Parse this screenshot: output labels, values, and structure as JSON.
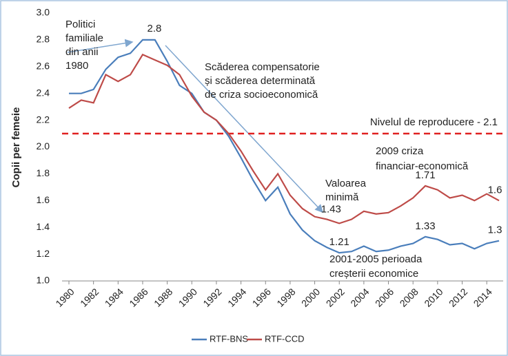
{
  "chart_data": {
    "type": "line",
    "y_label": "Copii per femeie",
    "x": [
      1980,
      1981,
      1982,
      1983,
      1984,
      1985,
      1986,
      1987,
      1988,
      1989,
      1990,
      1991,
      1992,
      1993,
      1994,
      1995,
      1996,
      1997,
      1998,
      1999,
      2000,
      2001,
      2002,
      2003,
      2004,
      2005,
      2006,
      2007,
      2008,
      2009,
      2010,
      2011,
      2012,
      2013,
      2014,
      2015
    ],
    "xlim": [
      1980,
      2015
    ],
    "xticks": [
      1980,
      1982,
      1984,
      1986,
      1988,
      1990,
      1992,
      1994,
      1996,
      1998,
      2000,
      2002,
      2004,
      2006,
      2008,
      2010,
      2012,
      2014
    ],
    "ylim": [
      1.0,
      3.0
    ],
    "yticks": [
      {
        "value": 1.0,
        "label": "1.0"
      },
      {
        "value": 1.2,
        "label": "1.2"
      },
      {
        "value": 1.4,
        "label": "1.4"
      },
      {
        "value": 1.6,
        "label": "1.6"
      },
      {
        "value": 1.8,
        "label": "1.8"
      },
      {
        "value": 2.0,
        "label": "2.0"
      },
      {
        "value": 2.2,
        "label": "2.2"
      },
      {
        "value": 2.4,
        "label": "2.4"
      },
      {
        "value": 2.6,
        "label": "2.6"
      },
      {
        "value": 2.8,
        "label": "2.8"
      },
      {
        "value": 3.0,
        "label": "3.0"
      }
    ],
    "grid": false,
    "legend": "bottom",
    "series": [
      {
        "name": "RTF-BNS",
        "color": "#4a7ebb",
        "values": [
          2.4,
          2.4,
          2.43,
          2.58,
          2.67,
          2.7,
          2.8,
          2.8,
          2.64,
          2.46,
          2.4,
          2.26,
          2.2,
          2.08,
          1.92,
          1.75,
          1.6,
          1.7,
          1.5,
          1.38,
          1.3,
          1.25,
          1.21,
          1.22,
          1.26,
          1.22,
          1.23,
          1.26,
          1.28,
          1.33,
          1.31,
          1.27,
          1.28,
          1.24,
          1.28,
          1.3
        ],
        "value_labels": [
          null,
          null,
          null,
          null,
          null,
          null,
          "2.8",
          null,
          null,
          null,
          null,
          null,
          null,
          null,
          null,
          null,
          null,
          null,
          null,
          null,
          null,
          null,
          "1.21",
          null,
          null,
          null,
          null,
          null,
          null,
          "1.33",
          null,
          null,
          null,
          null,
          null,
          "1.3"
        ]
      },
      {
        "name": "RTF-CCD",
        "color": "#be4b48",
        "values": [
          2.29,
          2.35,
          2.33,
          2.54,
          2.49,
          2.54,
          2.69,
          2.65,
          2.61,
          2.54,
          2.38,
          2.26,
          2.2,
          2.1,
          1.97,
          1.82,
          1.68,
          1.8,
          1.64,
          1.54,
          1.48,
          1.46,
          1.43,
          1.46,
          1.52,
          1.5,
          1.51,
          1.56,
          1.62,
          1.71,
          1.68,
          1.62,
          1.64,
          1.6,
          1.65,
          1.6
        ],
        "value_labels": [
          null,
          null,
          null,
          null,
          null,
          null,
          null,
          null,
          null,
          null,
          null,
          null,
          null,
          null,
          null,
          null,
          null,
          null,
          null,
          null,
          null,
          null,
          "1.43",
          null,
          null,
          null,
          null,
          null,
          null,
          "1.71",
          null,
          null,
          null,
          null,
          null,
          "1.6"
        ]
      }
    ],
    "reference_line": {
      "value": 2.1,
      "label": "Nivelul de reproducere - 2.1",
      "color": "#e02020"
    },
    "annotations": [
      [
        "Politici",
        "familiale",
        "din anii",
        "1980"
      ],
      [
        "Scăderea compensatorie",
        "și scăderea determinată",
        "de criza socioeconomică"
      ],
      [
        "Valoarea",
        "minimă"
      ],
      [
        "2009 criza",
        "financiar-economică"
      ],
      [
        "2001-2005 perioada",
        "creșterii economice"
      ]
    ]
  }
}
